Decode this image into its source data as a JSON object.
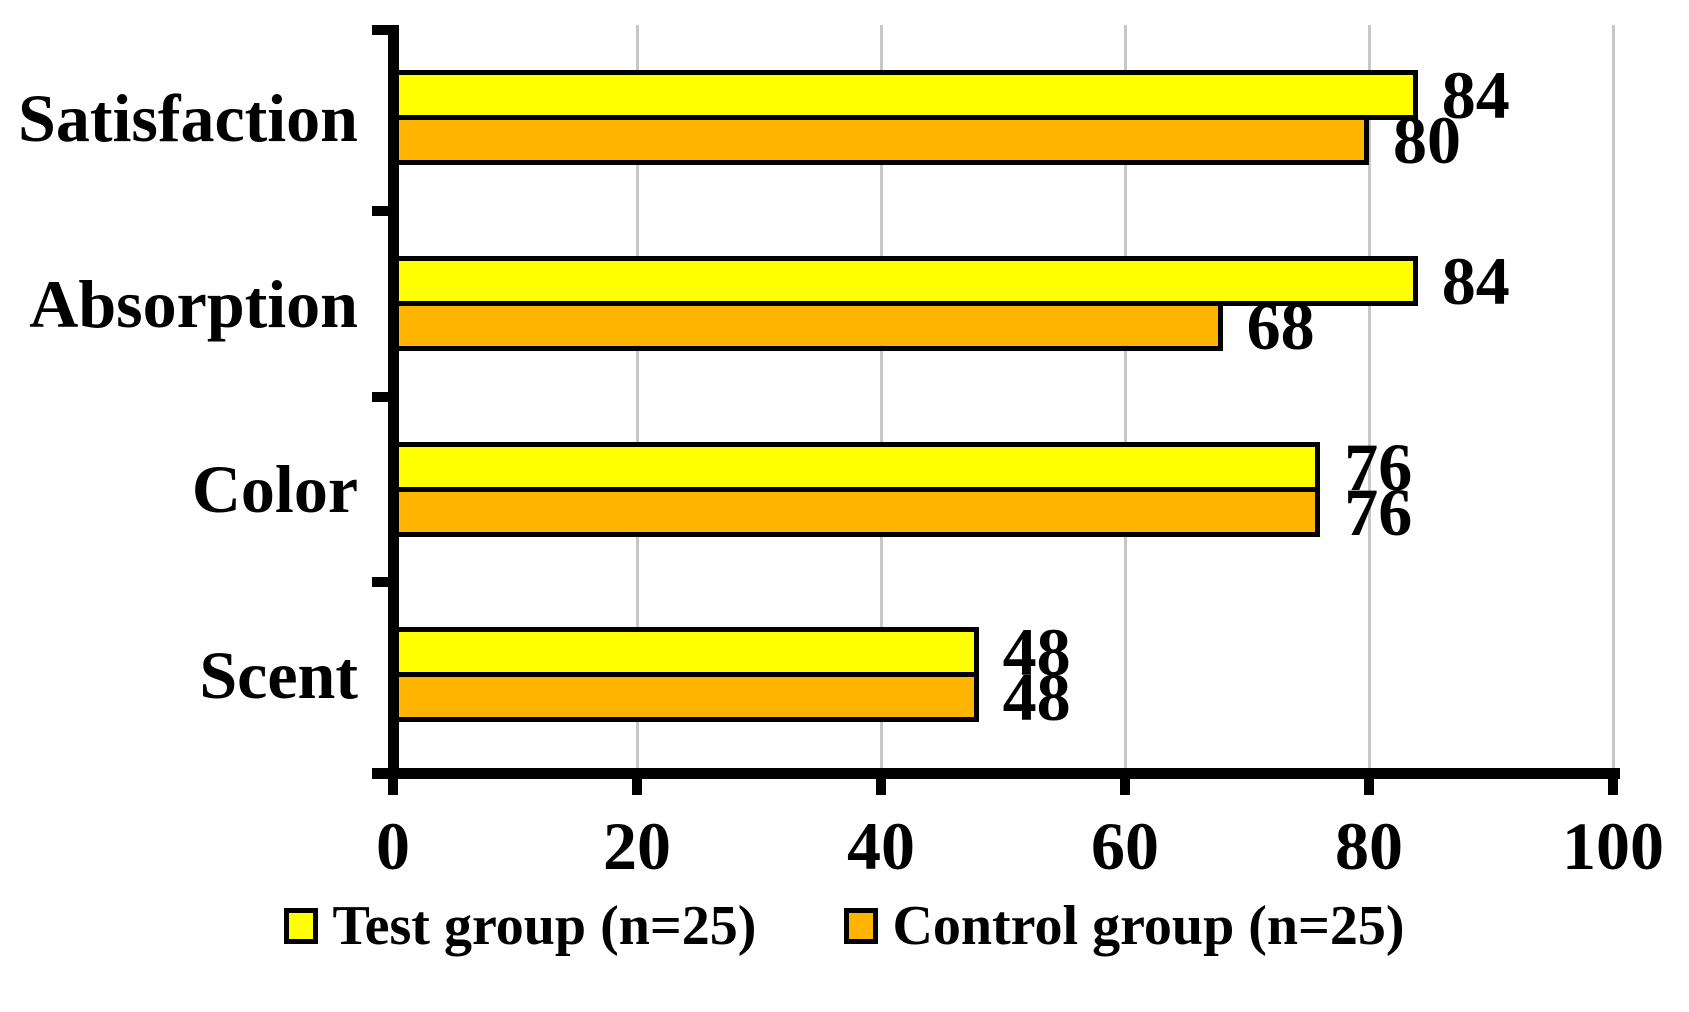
{
  "figure": {
    "background": "#FFFFFF",
    "text_color": "#000000",
    "axis_color": "#000000",
    "gridline_color": "#C8C8C8",
    "bar_border_color": "#000000"
  },
  "chart_data": {
    "type": "bar",
    "orientation": "horizontal",
    "title": "",
    "xlabel": "",
    "ylabel": "",
    "categories": [
      "Satisfaction",
      "Absorption",
      "Color",
      "Scent"
    ],
    "series": [
      {
        "name": "Test group (n=25)",
        "color": "#FFFF00",
        "values": [
          84,
          84,
          76,
          48
        ]
      },
      {
        "name": "Control group (n=25)",
        "color": "#FFB400",
        "values": [
          80,
          68,
          76,
          48
        ]
      }
    ],
    "xlim": [
      0,
      100
    ],
    "xticks": [
      0,
      20,
      40,
      60,
      80,
      100
    ],
    "grid": true,
    "data_labels": true,
    "legend_position": "bottom"
  }
}
